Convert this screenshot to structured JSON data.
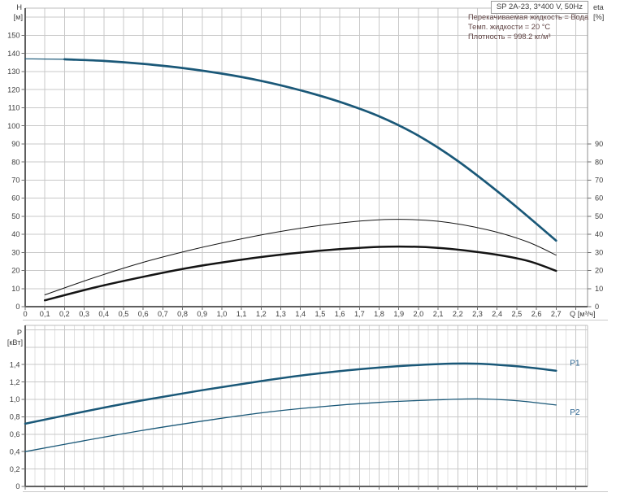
{
  "title_box": {
    "label": "SP 2A-23, 3*400 V, 50Hz"
  },
  "info": {
    "lines": [
      "Перекачиваемая жидкость = Вода",
      "Темп. жидкости = 20 °C",
      "Плотность = 998.2 кг/м³"
    ]
  },
  "colors": {
    "curve_blue": "#1a5878",
    "curve_black": "#141414",
    "grid_major": "#c8c8c8",
    "grid_minor": "#e1e1e1",
    "axis_dark": "#5f5f5f",
    "axis_light": "#bdbdbd",
    "tick_text": "#3d3d3d",
    "annotation_text": "#5f4343",
    "series_label": "#2a6390",
    "box_border": "#9a9a9a"
  },
  "chart_data": [
    {
      "id": "hq",
      "type": "line",
      "title": "",
      "x_axis": {
        "label": "Q [м³/ч]",
        "range": [
          0,
          2.86
        ],
        "grid_step": 0.1,
        "tick_values": [
          0,
          0.1,
          0.2,
          0.3,
          0.4,
          0.5,
          0.6,
          0.7,
          0.8,
          0.9,
          1.0,
          1.1,
          1.2,
          1.3,
          1.4,
          1.5,
          1.6,
          1.7,
          1.8,
          1.9,
          2.0,
          2.1,
          2.2,
          2.3,
          2.4,
          2.5,
          2.6,
          2.7
        ],
        "tick_labels": [
          "0",
          "0,1",
          "0,2",
          "0,3",
          "0,4",
          "0,5",
          "0,6",
          "0,7",
          "0,8",
          "0,9",
          "1,0",
          "1,1",
          "1,2",
          "1,3",
          "1,4",
          "1,5",
          "1,6",
          "1,7",
          "1,8",
          "1,9",
          "2,0",
          "2,1",
          "2,2",
          "2,3",
          "2,4",
          "2,5",
          "2,6",
          "2,7"
        ]
      },
      "y_left": {
        "label": "H",
        "unit": "[м]",
        "range": [
          0,
          165
        ],
        "tick_step": 10,
        "tick_max": 150
      },
      "y_right": {
        "label": "eta",
        "unit": "[%]",
        "range": [
          0,
          165
        ],
        "tick_step": 10,
        "tick_max": 90
      },
      "series": [
        {
          "name": "H-curve",
          "axis": "left",
          "color_key": "curve_blue",
          "width": 2.7,
          "thin_width": 1.2,
          "thin_until": 0.2,
          "points": [
            [
              0,
              137
            ],
            [
              0.2,
              136.7
            ],
            [
              0.4,
              135.8
            ],
            [
              0.6,
              134.2
            ],
            [
              0.8,
              131.9
            ],
            [
              1.0,
              128.8
            ],
            [
              1.2,
              124.8
            ],
            [
              1.4,
              119.6
            ],
            [
              1.6,
              113.2
            ],
            [
              1.8,
              105.2
            ],
            [
              2.0,
              94.5
            ],
            [
              2.2,
              80.5
            ],
            [
              2.45,
              59.5
            ],
            [
              2.7,
              36.5
            ]
          ]
        },
        {
          "name": "eta-thin",
          "axis": "right",
          "color_key": "curve_black",
          "width": 1.0,
          "points": [
            [
              0.1,
              6.5
            ],
            [
              0.35,
              16
            ],
            [
              0.6,
              24.5
            ],
            [
              0.85,
              31.5
            ],
            [
              1.1,
              37.5
            ],
            [
              1.35,
              42.5
            ],
            [
              1.6,
              46.2
            ],
            [
              1.85,
              48.2
            ],
            [
              2.1,
              47.2
            ],
            [
              2.35,
              42.5
            ],
            [
              2.55,
              36
            ],
            [
              2.7,
              28.5
            ]
          ]
        },
        {
          "name": "eta-thick",
          "axis": "right",
          "color_key": "curve_black",
          "width": 2.5,
          "points": [
            [
              0.1,
              3.5
            ],
            [
              0.35,
              10.5
            ],
            [
              0.6,
              16.5
            ],
            [
              0.85,
              21.8
            ],
            [
              1.1,
              26
            ],
            [
              1.35,
              29.3
            ],
            [
              1.6,
              31.8
            ],
            [
              1.85,
              33.2
            ],
            [
              2.1,
              32.5
            ],
            [
              2.35,
              29.5
            ],
            [
              2.55,
              25.5
            ],
            [
              2.7,
              19.8
            ]
          ]
        }
      ]
    },
    {
      "id": "power",
      "type": "line",
      "title": "",
      "x_axis": {
        "range": [
          0,
          2.86
        ],
        "grid_step": 0.1,
        "minor_step": 0.05
      },
      "y_left": {
        "label": "P",
        "unit": "[кВт]",
        "range": [
          0,
          1.85
        ],
        "tick_step": 0.2,
        "tick_max": 1.4,
        "tick_labels": [
          "0",
          "0,2",
          "0,4",
          "0,6",
          "0,8",
          "1,0",
          "1,2",
          "1,4"
        ]
      },
      "series": [
        {
          "name": "P1",
          "color_key": "curve_blue",
          "width": 2.5,
          "end_label": {
            "text": "P1",
            "dx": 17,
            "dy": -6
          },
          "points": [
            [
              0,
              0.72
            ],
            [
              0.3,
              0.86
            ],
            [
              0.6,
              0.99
            ],
            [
              0.9,
              1.105
            ],
            [
              1.2,
              1.21
            ],
            [
              1.5,
              1.3
            ],
            [
              1.8,
              1.365
            ],
            [
              2.1,
              1.405
            ],
            [
              2.3,
              1.41
            ],
            [
              2.5,
              1.38
            ],
            [
              2.7,
              1.33
            ]
          ]
        },
        {
          "name": "P2",
          "color_key": "curve_blue",
          "width": 1.3,
          "end_label": {
            "text": "P2",
            "dx": 17,
            "dy": 12
          },
          "points": [
            [
              0,
              0.4
            ],
            [
              0.3,
              0.525
            ],
            [
              0.6,
              0.645
            ],
            [
              0.9,
              0.75
            ],
            [
              1.2,
              0.845
            ],
            [
              1.5,
              0.915
            ],
            [
              1.8,
              0.965
            ],
            [
              2.1,
              0.995
            ],
            [
              2.3,
              1.005
            ],
            [
              2.5,
              0.985
            ],
            [
              2.7,
              0.935
            ]
          ]
        }
      ]
    }
  ]
}
